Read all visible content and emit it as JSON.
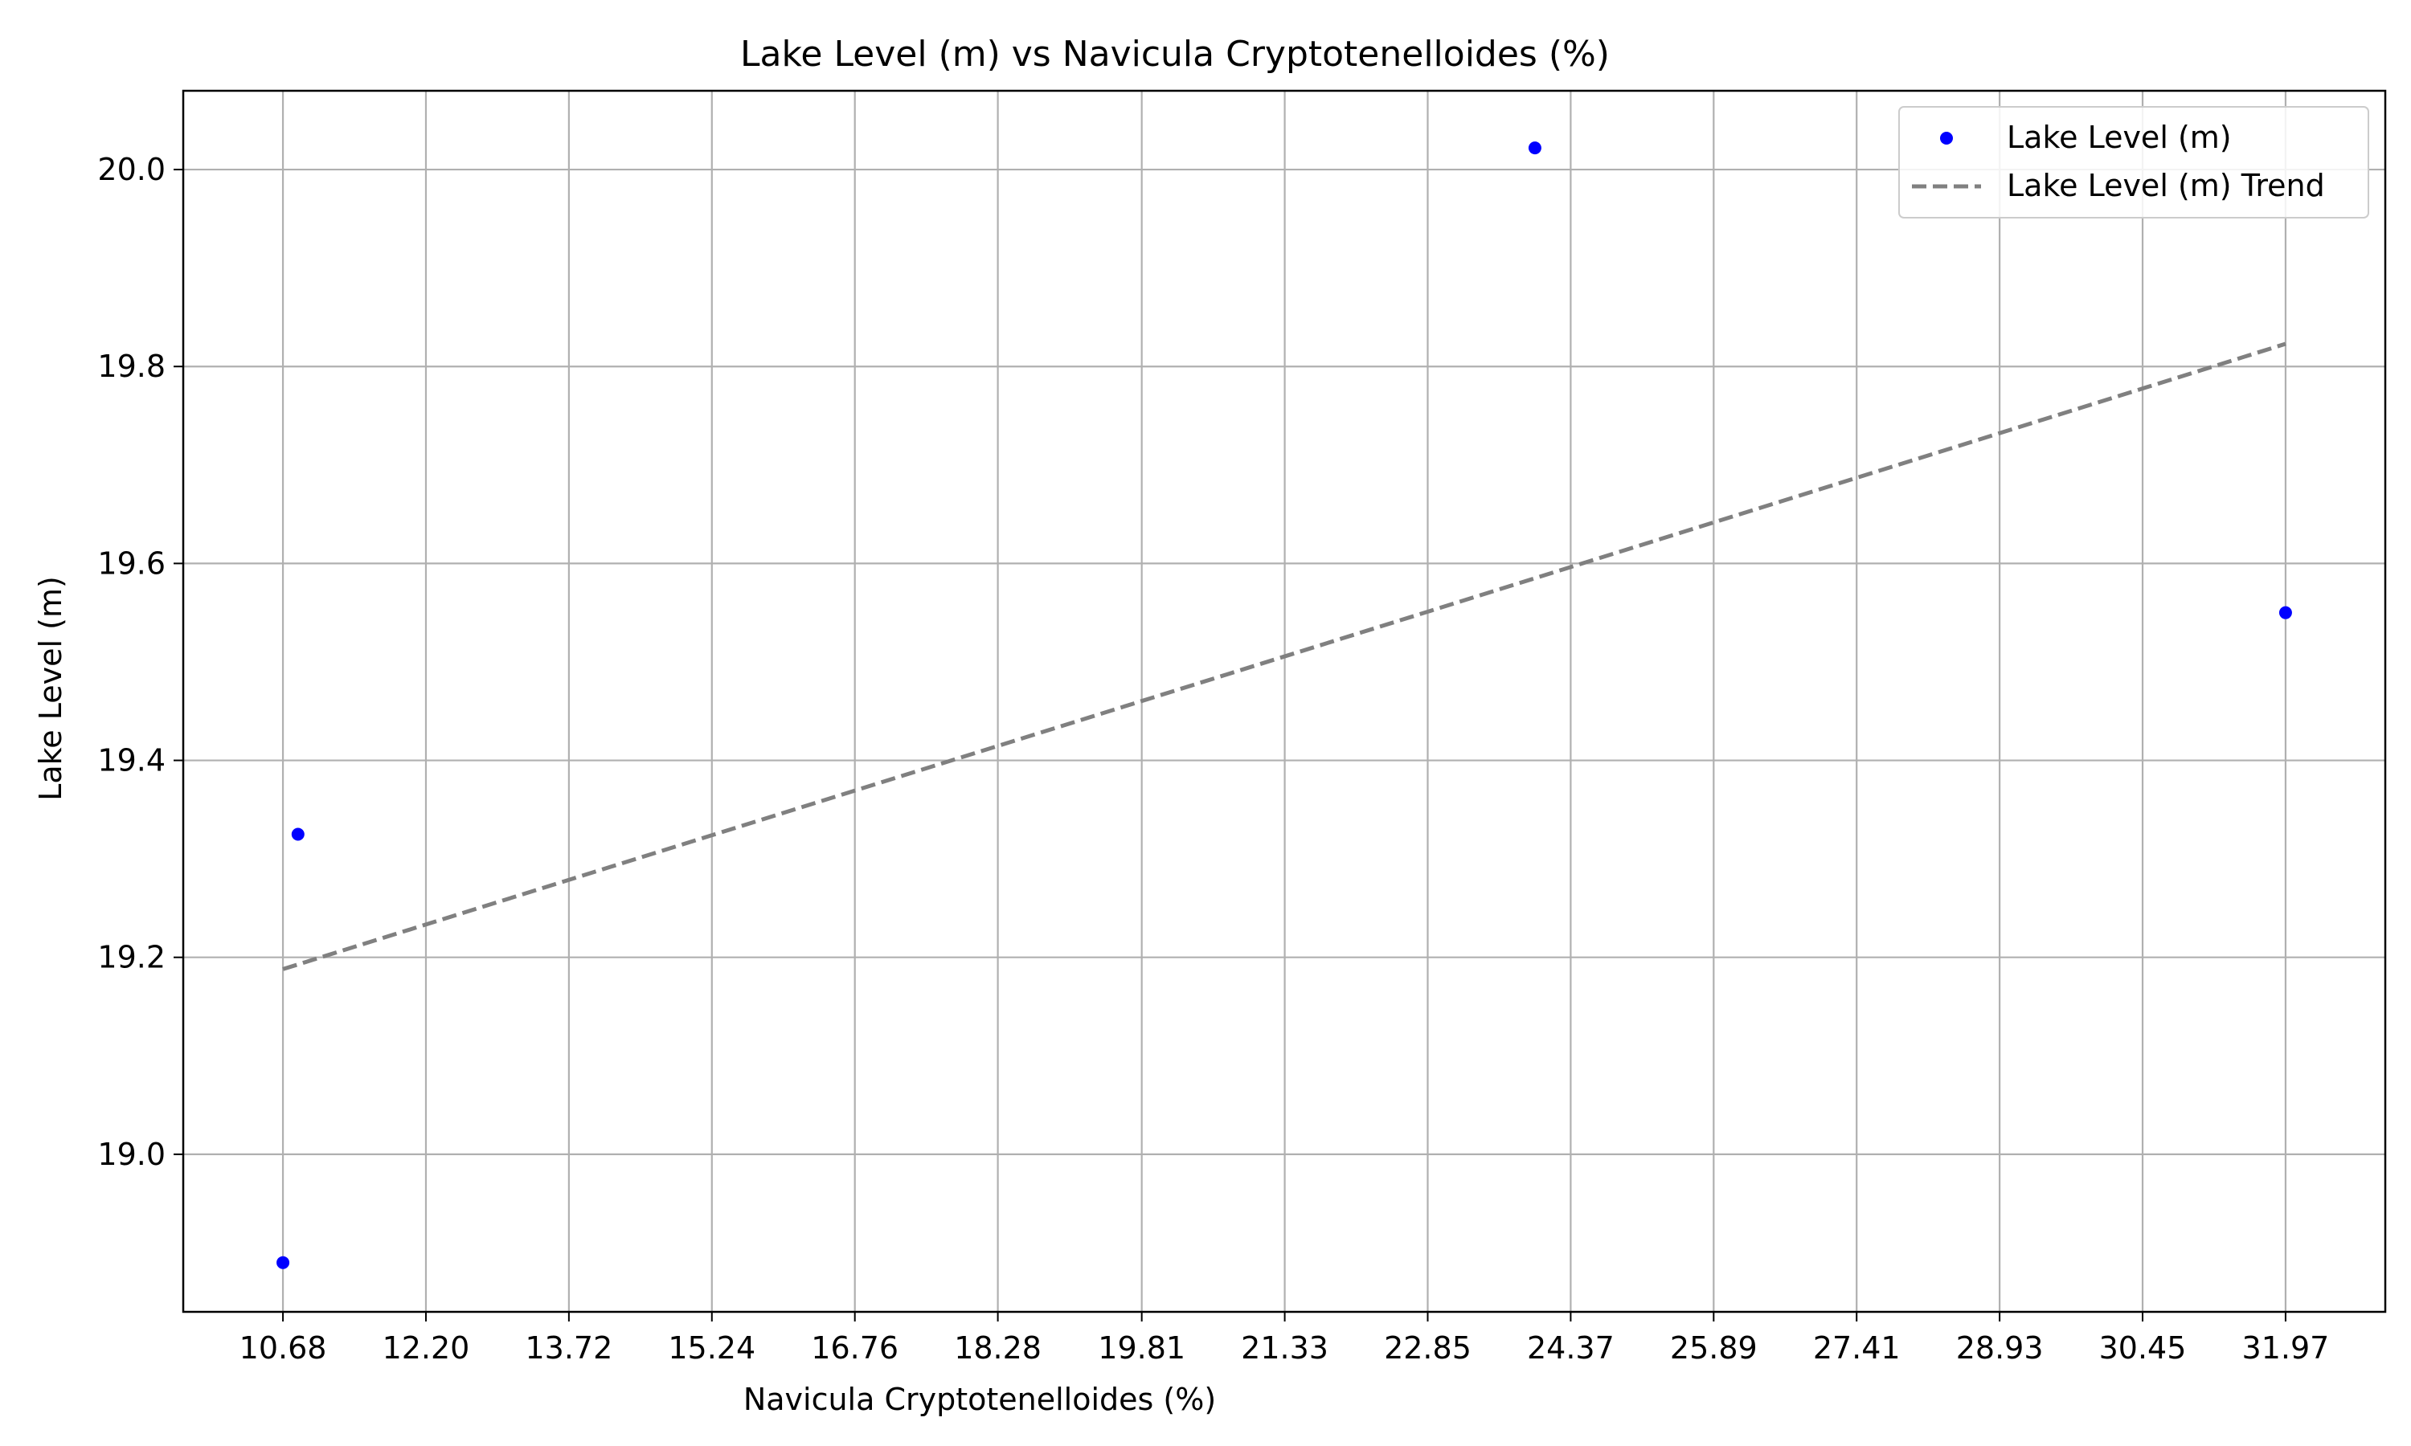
{
  "chart_data": {
    "type": "scatter",
    "title": "Lake Level (m) vs Navicula Cryptotenelloides (%)",
    "xlabel": "Navicula Cryptotenelloides (%)",
    "ylabel": "Lake Level (m)",
    "x_ticks": [
      "10.68",
      "12.20",
      "13.72",
      "15.24",
      "16.76",
      "18.28",
      "19.81",
      "21.33",
      "22.85",
      "24.37",
      "25.89",
      "27.41",
      "28.93",
      "30.45",
      "31.97"
    ],
    "y_ticks": [
      "19.0",
      "19.2",
      "19.4",
      "19.6",
      "19.8",
      "20.0"
    ],
    "xlim": [
      9.62,
      33.03
    ],
    "ylim": [
      18.84,
      20.08
    ],
    "grid": true,
    "legend_position": "top-right",
    "series": [
      {
        "name": "Lake Level (m)",
        "kind": "scatter",
        "color": "#0000ff",
        "points": [
          {
            "x": 10.68,
            "y": 18.89
          },
          {
            "x": 10.84,
            "y": 19.325
          },
          {
            "x": 23.99,
            "y": 20.022
          },
          {
            "x": 31.97,
            "y": 19.55
          }
        ]
      },
      {
        "name": "Lake Level (m) Trend",
        "kind": "line",
        "style": "dashed",
        "color": "#808080",
        "points": [
          {
            "x": 10.68,
            "y": 19.188
          },
          {
            "x": 31.97,
            "y": 19.823
          }
        ]
      }
    ]
  }
}
